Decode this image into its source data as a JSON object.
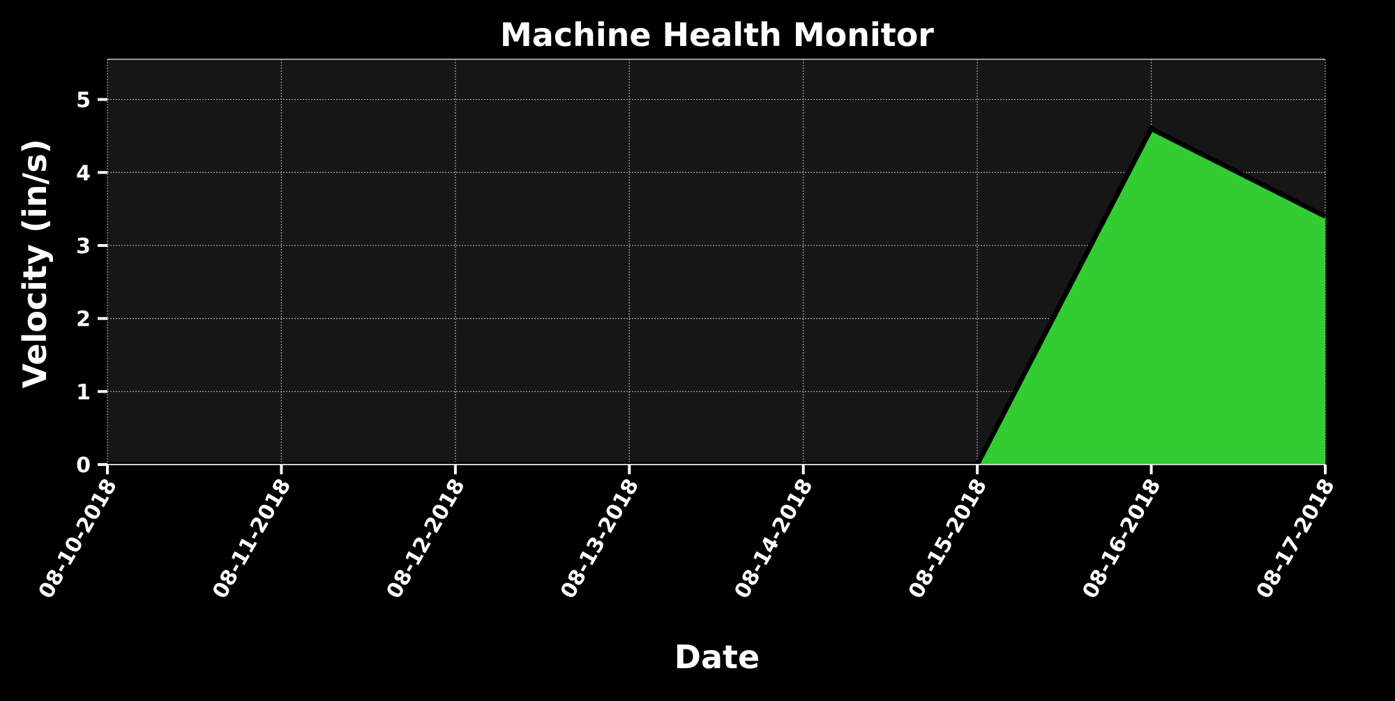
{
  "chart_data": {
    "type": "area",
    "title": "Machine Health Monitor",
    "xlabel": "Date",
    "ylabel": "Velocity (in/s)",
    "x": [
      "08-10-2018",
      "08-11-2018",
      "08-12-2018",
      "08-13-2018",
      "08-14-2018",
      "08-15-2018",
      "08-16-2018",
      "08-17-2018"
    ],
    "series": [
      {
        "values": [
          0,
          0,
          0,
          0,
          0,
          0,
          4.6,
          3.4
        ]
      }
    ],
    "yticks": [
      "0",
      "1",
      "2",
      "3",
      "4",
      "5"
    ],
    "ylim": [
      0,
      5.55
    ],
    "grid": true,
    "colors": {
      "background": "#000000",
      "plot_background": "#161616",
      "fill": "#32cd32",
      "line": "#000000",
      "grid": "#cfcfcf",
      "text": "#ffffff"
    }
  }
}
